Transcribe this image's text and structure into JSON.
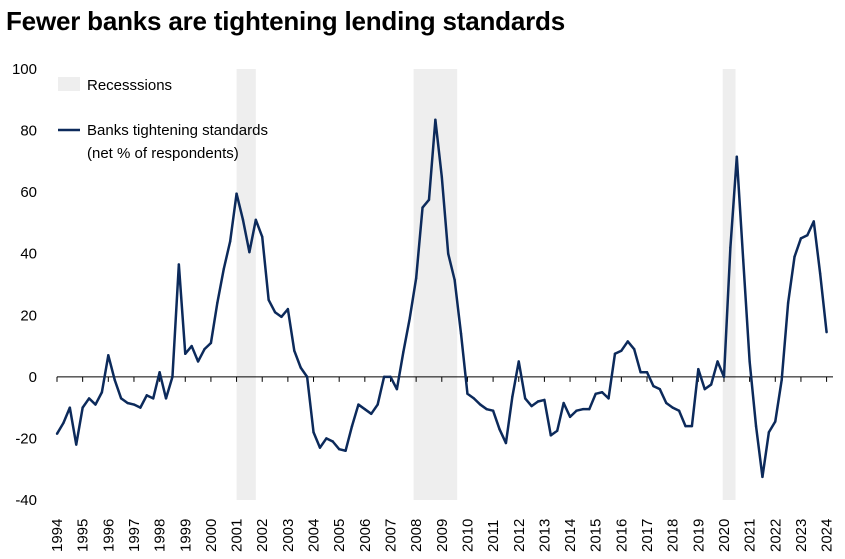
{
  "chart_data": {
    "type": "line",
    "title": "Fewer banks are tightening lending standards",
    "xlabel": "",
    "ylabel": "",
    "ylim": [
      -40,
      100
    ],
    "yticks": [
      -40,
      -20,
      0,
      20,
      40,
      60,
      80,
      100
    ],
    "xlim": [
      1994,
      2024.25
    ],
    "xticks": [
      "1994",
      "1995",
      "1996",
      "1997",
      "1998",
      "1999",
      "2000",
      "2001",
      "2002",
      "2003",
      "2004",
      "2005",
      "2006",
      "2007",
      "2008",
      "2009",
      "2010",
      "2011",
      "2012",
      "2013",
      "2014",
      "2015",
      "2016",
      "2017",
      "2018",
      "2019",
      "2020",
      "2021",
      "2022",
      "2023",
      "2024"
    ],
    "legend": {
      "recessions_label": "Recesssions",
      "series_label_line1": "Banks tightening standards",
      "series_label_line2": "(net % of respondents)",
      "position": "top-left"
    },
    "recessions": [
      {
        "start": 2001.0,
        "end": 2001.75
      },
      {
        "start": 2007.9,
        "end": 2009.6
      },
      {
        "start": 2019.95,
        "end": 2020.45
      }
    ],
    "colors": {
      "line": "#0c2a5b",
      "recession": "#eeeeee",
      "axis": "#000000"
    },
    "series": [
      {
        "name": "Banks tightening standards (net % of respondents)",
        "points": [
          [
            1994.0,
            -18.5
          ],
          [
            1994.25,
            -15
          ],
          [
            1994.5,
            -10
          ],
          [
            1994.75,
            -22
          ],
          [
            1995.0,
            -10
          ],
          [
            1995.25,
            -7
          ],
          [
            1995.5,
            -9
          ],
          [
            1995.75,
            -5
          ],
          [
            1996.0,
            7
          ],
          [
            1996.25,
            -1
          ],
          [
            1996.5,
            -7
          ],
          [
            1996.75,
            -8.5
          ],
          [
            1997.0,
            -9
          ],
          [
            1997.25,
            -10
          ],
          [
            1997.5,
            -6
          ],
          [
            1997.75,
            -7
          ],
          [
            1998.0,
            1.5
          ],
          [
            1998.25,
            -7
          ],
          [
            1998.5,
            0
          ],
          [
            1998.75,
            36.5
          ],
          [
            1999.0,
            7.5
          ],
          [
            1999.25,
            10
          ],
          [
            1999.5,
            5
          ],
          [
            1999.75,
            9
          ],
          [
            2000.0,
            11
          ],
          [
            2000.25,
            24
          ],
          [
            2000.5,
            35
          ],
          [
            2000.75,
            44
          ],
          [
            2001.0,
            59.5
          ],
          [
            2001.25,
            51
          ],
          [
            2001.5,
            40.5
          ],
          [
            2001.75,
            51
          ],
          [
            2002.0,
            45.5
          ],
          [
            2002.25,
            25
          ],
          [
            2002.5,
            21
          ],
          [
            2002.75,
            19.5
          ],
          [
            2003.0,
            22
          ],
          [
            2003.25,
            8.5
          ],
          [
            2003.5,
            3
          ],
          [
            2003.75,
            0
          ],
          [
            2004.0,
            -18
          ],
          [
            2004.25,
            -23
          ],
          [
            2004.5,
            -20
          ],
          [
            2004.75,
            -21
          ],
          [
            2005.0,
            -23.5
          ],
          [
            2005.25,
            -24
          ],
          [
            2005.5,
            -16
          ],
          [
            2005.75,
            -9
          ],
          [
            2006.0,
            -10.5
          ],
          [
            2006.25,
            -12
          ],
          [
            2006.5,
            -9
          ],
          [
            2006.75,
            0
          ],
          [
            2007.0,
            0
          ],
          [
            2007.25,
            -4
          ],
          [
            2007.5,
            8
          ],
          [
            2007.75,
            19
          ],
          [
            2008.0,
            32
          ],
          [
            2008.25,
            55
          ],
          [
            2008.5,
            57.5
          ],
          [
            2008.75,
            83.5
          ],
          [
            2009.0,
            65
          ],
          [
            2009.25,
            40
          ],
          [
            2009.5,
            31.5
          ],
          [
            2009.75,
            14
          ],
          [
            2010.0,
            -5.5
          ],
          [
            2010.25,
            -7
          ],
          [
            2010.5,
            -9
          ],
          [
            2010.75,
            -10.5
          ],
          [
            2011.0,
            -11
          ],
          [
            2011.25,
            -17
          ],
          [
            2011.5,
            -21.5
          ],
          [
            2011.75,
            -6.5
          ],
          [
            2012.0,
            5
          ],
          [
            2012.25,
            -7
          ],
          [
            2012.5,
            -9.5
          ],
          [
            2012.75,
            -8
          ],
          [
            2013.0,
            -7.5
          ],
          [
            2013.25,
            -19
          ],
          [
            2013.5,
            -17.5
          ],
          [
            2013.75,
            -8.5
          ],
          [
            2014.0,
            -13
          ],
          [
            2014.25,
            -11
          ],
          [
            2014.5,
            -10.5
          ],
          [
            2014.75,
            -10.5
          ],
          [
            2015.0,
            -5.5
          ],
          [
            2015.25,
            -5
          ],
          [
            2015.5,
            -7
          ],
          [
            2015.75,
            7.5
          ],
          [
            2016.0,
            8.5
          ],
          [
            2016.25,
            11.5
          ],
          [
            2016.5,
            9
          ],
          [
            2016.75,
            1.5
          ],
          [
            2017.0,
            1.5
          ],
          [
            2017.25,
            -3
          ],
          [
            2017.5,
            -4
          ],
          [
            2017.75,
            -8.5
          ],
          [
            2018.0,
            -10
          ],
          [
            2018.25,
            -11
          ],
          [
            2018.5,
            -16
          ],
          [
            2018.75,
            -16
          ],
          [
            2019.0,
            2.5
          ],
          [
            2019.25,
            -4
          ],
          [
            2019.5,
            -2.5
          ],
          [
            2019.75,
            5
          ],
          [
            2020.0,
            0
          ],
          [
            2020.25,
            42
          ],
          [
            2020.5,
            71.5
          ],
          [
            2020.75,
            38
          ],
          [
            2021.0,
            5
          ],
          [
            2021.25,
            -16
          ],
          [
            2021.5,
            -32.5
          ],
          [
            2021.75,
            -18
          ],
          [
            2022.0,
            -14.5
          ],
          [
            2022.25,
            -1
          ],
          [
            2022.5,
            24
          ],
          [
            2022.75,
            39
          ],
          [
            2023.0,
            45
          ],
          [
            2023.25,
            46
          ],
          [
            2023.5,
            50.5
          ],
          [
            2023.75,
            33.5
          ],
          [
            2024.0,
            14.5
          ]
        ]
      }
    ]
  }
}
